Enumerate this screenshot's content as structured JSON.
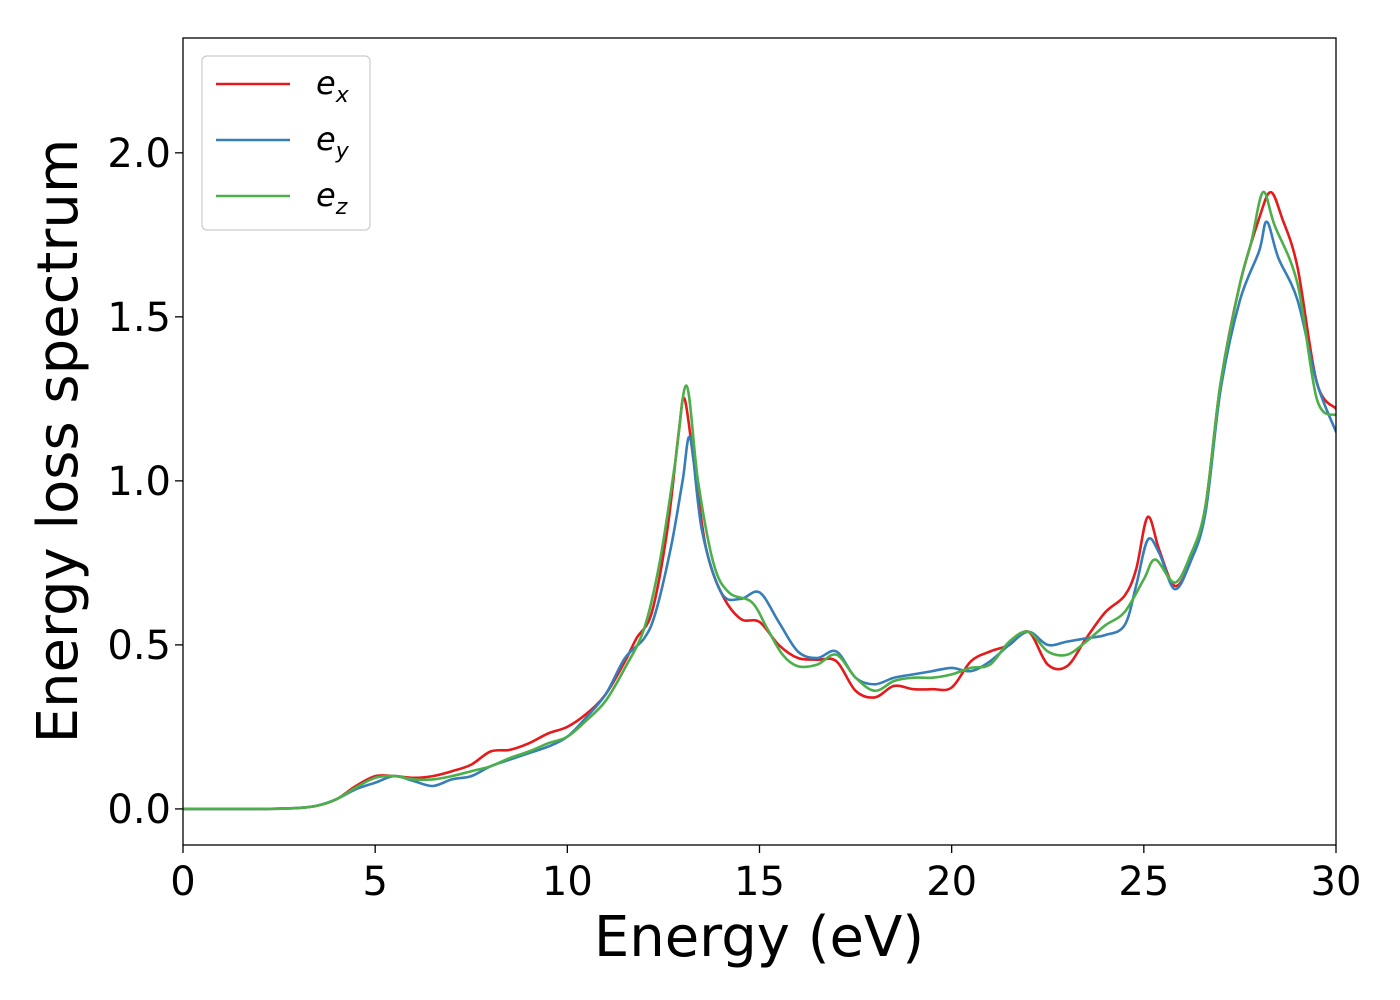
{
  "chart_data": {
    "type": "line",
    "title": "",
    "xlabel": "Energy (eV)",
    "ylabel": "Energy loss spectrum",
    "xlim": [
      0,
      30
    ],
    "ylim": [
      -0.11,
      2.35
    ],
    "x_ticks": [
      0,
      5,
      10,
      15,
      20,
      25,
      30
    ],
    "y_ticks": [
      "0.0",
      "0.5",
      "1.0",
      "1.5",
      "2.0"
    ],
    "grid": false,
    "legend_position": "top-left",
    "series": [
      {
        "name": "e",
        "sub": "x",
        "color": "#e41a1c",
        "points": [
          [
            0,
            0
          ],
          [
            2,
            0
          ],
          [
            3,
            0.003
          ],
          [
            3.5,
            0.01
          ],
          [
            4,
            0.03
          ],
          [
            4.5,
            0.07
          ],
          [
            5,
            0.1
          ],
          [
            5.5,
            0.1
          ],
          [
            6,
            0.095
          ],
          [
            6.5,
            0.1
          ],
          [
            7,
            0.115
          ],
          [
            7.5,
            0.135
          ],
          [
            8,
            0.175
          ],
          [
            8.5,
            0.18
          ],
          [
            9,
            0.2
          ],
          [
            9.5,
            0.23
          ],
          [
            10,
            0.25
          ],
          [
            10.5,
            0.29
          ],
          [
            11,
            0.35
          ],
          [
            11.5,
            0.45
          ],
          [
            11.8,
            0.52
          ],
          [
            12.2,
            0.6
          ],
          [
            12.6,
            0.85
          ],
          [
            12.9,
            1.15
          ],
          [
            13.05,
            1.25
          ],
          [
            13.3,
            1.05
          ],
          [
            13.6,
            0.8
          ],
          [
            14,
            0.66
          ],
          [
            14.5,
            0.58
          ],
          [
            15,
            0.57
          ],
          [
            15.5,
            0.5
          ],
          [
            16,
            0.46
          ],
          [
            16.5,
            0.455
          ],
          [
            17,
            0.45
          ],
          [
            17.5,
            0.36
          ],
          [
            18,
            0.34
          ],
          [
            18.5,
            0.375
          ],
          [
            19,
            0.365
          ],
          [
            19.5,
            0.365
          ],
          [
            20,
            0.37
          ],
          [
            20.5,
            0.45
          ],
          [
            21,
            0.48
          ],
          [
            21.5,
            0.5
          ],
          [
            22,
            0.54
          ],
          [
            22.5,
            0.44
          ],
          [
            23,
            0.435
          ],
          [
            23.5,
            0.52
          ],
          [
            24,
            0.6
          ],
          [
            24.5,
            0.65
          ],
          [
            24.8,
            0.73
          ],
          [
            25.1,
            0.89
          ],
          [
            25.4,
            0.79
          ],
          [
            25.8,
            0.68
          ],
          [
            26.2,
            0.75
          ],
          [
            26.6,
            0.92
          ],
          [
            27,
            1.3
          ],
          [
            27.5,
            1.6
          ],
          [
            28,
            1.8
          ],
          [
            28.3,
            1.88
          ],
          [
            28.6,
            1.8
          ],
          [
            29,
            1.65
          ],
          [
            29.5,
            1.3
          ],
          [
            30,
            1.22
          ]
        ]
      },
      {
        "name": "e",
        "sub": "y",
        "color": "#377eb8",
        "points": [
          [
            0,
            0
          ],
          [
            2,
            0
          ],
          [
            3,
            0.003
          ],
          [
            3.5,
            0.01
          ],
          [
            4,
            0.03
          ],
          [
            4.5,
            0.06
          ],
          [
            5,
            0.08
          ],
          [
            5.5,
            0.1
          ],
          [
            6,
            0.085
          ],
          [
            6.5,
            0.07
          ],
          [
            7,
            0.09
          ],
          [
            7.5,
            0.1
          ],
          [
            8,
            0.13
          ],
          [
            8.5,
            0.15
          ],
          [
            9,
            0.17
          ],
          [
            9.5,
            0.19
          ],
          [
            10,
            0.22
          ],
          [
            10.5,
            0.28
          ],
          [
            11,
            0.35
          ],
          [
            11.5,
            0.46
          ],
          [
            12,
            0.52
          ],
          [
            12.3,
            0.6
          ],
          [
            12.7,
            0.8
          ],
          [
            13,
            1.0
          ],
          [
            13.2,
            1.13
          ],
          [
            13.5,
            0.85
          ],
          [
            14,
            0.66
          ],
          [
            14.5,
            0.64
          ],
          [
            15,
            0.66
          ],
          [
            15.5,
            0.57
          ],
          [
            16,
            0.48
          ],
          [
            16.5,
            0.46
          ],
          [
            17,
            0.48
          ],
          [
            17.5,
            0.4
          ],
          [
            18,
            0.38
          ],
          [
            18.5,
            0.4
          ],
          [
            19,
            0.41
          ],
          [
            19.5,
            0.42
          ],
          [
            20,
            0.43
          ],
          [
            20.5,
            0.42
          ],
          [
            21,
            0.45
          ],
          [
            21.5,
            0.5
          ],
          [
            22,
            0.54
          ],
          [
            22.5,
            0.5
          ],
          [
            23,
            0.51
          ],
          [
            23.5,
            0.52
          ],
          [
            24,
            0.53
          ],
          [
            24.5,
            0.56
          ],
          [
            24.8,
            0.68
          ],
          [
            25.1,
            0.82
          ],
          [
            25.4,
            0.78
          ],
          [
            25.8,
            0.67
          ],
          [
            26.2,
            0.75
          ],
          [
            26.6,
            0.9
          ],
          [
            27,
            1.28
          ],
          [
            27.5,
            1.55
          ],
          [
            28,
            1.7
          ],
          [
            28.2,
            1.79
          ],
          [
            28.5,
            1.68
          ],
          [
            29,
            1.55
          ],
          [
            29.5,
            1.3
          ],
          [
            30,
            1.15
          ]
        ]
      },
      {
        "name": "e",
        "sub": "z",
        "color": "#4daf4a",
        "points": [
          [
            0,
            0
          ],
          [
            2,
            0
          ],
          [
            3,
            0.003
          ],
          [
            3.5,
            0.01
          ],
          [
            4,
            0.03
          ],
          [
            4.5,
            0.065
          ],
          [
            5,
            0.095
          ],
          [
            5.5,
            0.1
          ],
          [
            6,
            0.09
          ],
          [
            6.5,
            0.09
          ],
          [
            7,
            0.1
          ],
          [
            7.5,
            0.115
          ],
          [
            8,
            0.13
          ],
          [
            8.5,
            0.155
          ],
          [
            9,
            0.175
          ],
          [
            9.5,
            0.2
          ],
          [
            10,
            0.22
          ],
          [
            10.5,
            0.27
          ],
          [
            11,
            0.33
          ],
          [
            11.5,
            0.43
          ],
          [
            12,
            0.55
          ],
          [
            12.4,
            0.75
          ],
          [
            12.8,
            1.05
          ],
          [
            13.1,
            1.29
          ],
          [
            13.4,
            1.0
          ],
          [
            13.8,
            0.75
          ],
          [
            14.2,
            0.66
          ],
          [
            14.8,
            0.63
          ],
          [
            15.2,
            0.55
          ],
          [
            15.6,
            0.47
          ],
          [
            16,
            0.435
          ],
          [
            16.5,
            0.44
          ],
          [
            17,
            0.47
          ],
          [
            17.5,
            0.4
          ],
          [
            18,
            0.36
          ],
          [
            18.5,
            0.39
          ],
          [
            19,
            0.4
          ],
          [
            19.5,
            0.4
          ],
          [
            20,
            0.41
          ],
          [
            20.5,
            0.43
          ],
          [
            21,
            0.44
          ],
          [
            21.5,
            0.51
          ],
          [
            22,
            0.54
          ],
          [
            22.5,
            0.48
          ],
          [
            23,
            0.47
          ],
          [
            23.5,
            0.51
          ],
          [
            24,
            0.56
          ],
          [
            24.5,
            0.6
          ],
          [
            25,
            0.7
          ],
          [
            25.3,
            0.76
          ],
          [
            25.8,
            0.69
          ],
          [
            26.2,
            0.77
          ],
          [
            26.6,
            0.92
          ],
          [
            27,
            1.3
          ],
          [
            27.5,
            1.6
          ],
          [
            27.8,
            1.73
          ],
          [
            28.1,
            1.88
          ],
          [
            28.4,
            1.78
          ],
          [
            29,
            1.6
          ],
          [
            29.5,
            1.25
          ],
          [
            30,
            1.2
          ]
        ]
      }
    ]
  }
}
